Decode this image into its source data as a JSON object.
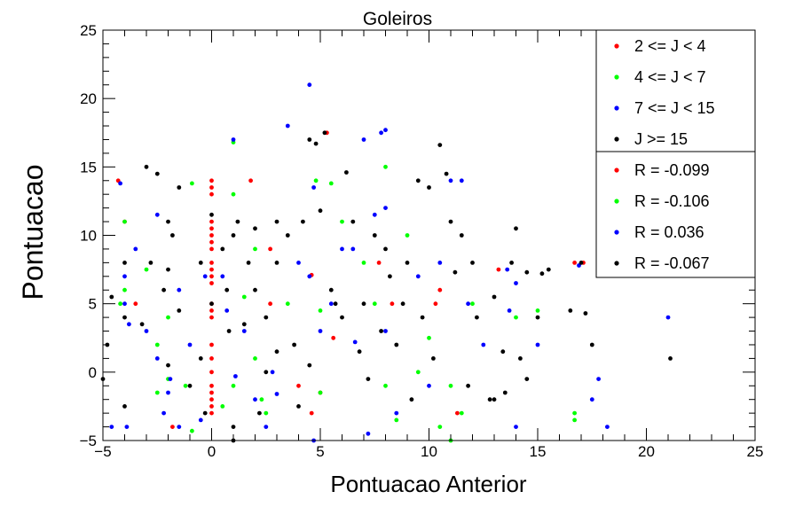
{
  "chart_data": {
    "type": "scatter",
    "title": "Goleiros",
    "xlabel": "Pontuacao Anterior",
    "ylabel": "Pontuacao",
    "xlim": [
      -5,
      25
    ],
    "ylim": [
      -5,
      25
    ],
    "xticks": [
      "−5",
      "0",
      "5",
      "10",
      "15",
      "20",
      "25"
    ],
    "yticks": [
      "−5",
      "0",
      "5",
      "10",
      "15",
      "20",
      "25"
    ],
    "grid": false,
    "legend_placement": "top-right",
    "legend": [
      {
        "label": "2 <= J < 4",
        "color": "#ff0000"
      },
      {
        "label": "4 <= J < 7",
        "color": "#00ff00"
      },
      {
        "label": "7 <= J < 15",
        "color": "#0000ff"
      },
      {
        "label": "J >= 15",
        "color": "#000000"
      }
    ],
    "correlations": [
      {
        "label": "R = -0.099",
        "color": "#ff0000"
      },
      {
        "label": "R = -0.106",
        "color": "#00ff00"
      },
      {
        "label": "R = 0.036",
        "color": "#0000ff"
      },
      {
        "label": "R = -0.067",
        "color": "#000000"
      }
    ],
    "series": [
      {
        "color": "#ff0000",
        "points": [
          [
            0,
            14
          ],
          [
            0,
            13.5
          ],
          [
            0,
            13
          ],
          [
            0,
            11
          ],
          [
            0,
            10.5
          ],
          [
            0,
            10
          ],
          [
            0,
            9.5
          ],
          [
            0,
            9
          ],
          [
            0,
            8
          ],
          [
            0,
            7.5
          ],
          [
            0,
            7
          ],
          [
            0,
            6.5
          ],
          [
            0,
            5
          ],
          [
            0,
            4.5
          ],
          [
            0,
            4
          ],
          [
            0,
            2
          ],
          [
            0,
            1
          ],
          [
            0,
            0
          ],
          [
            0,
            -1
          ],
          [
            0,
            -1.5
          ],
          [
            0,
            -2
          ],
          [
            0,
            -2.5
          ],
          [
            0,
            -3
          ],
          [
            -4.3,
            14
          ],
          [
            -4,
            11
          ],
          [
            1.8,
            14
          ],
          [
            2.7,
            9
          ],
          [
            -1.8,
            -4
          ],
          [
            -3.5,
            5
          ],
          [
            5.3,
            17.5
          ],
          [
            4.6,
            7.1
          ],
          [
            4,
            -1
          ],
          [
            4.6,
            -3
          ],
          [
            5,
            -1.5
          ],
          [
            5.6,
            2.5
          ],
          [
            7.7,
            8
          ],
          [
            8.3,
            5
          ],
          [
            10.3,
            5
          ],
          [
            10.5,
            6
          ],
          [
            11.3,
            -3
          ],
          [
            13.2,
            7.5
          ],
          [
            16.7,
            8
          ],
          [
            17.1,
            8
          ],
          [
            2.7,
            5
          ]
        ]
      },
      {
        "color": "#00ff00",
        "points": [
          [
            1,
            16.8
          ],
          [
            1,
            13
          ],
          [
            -0.9,
            13.8
          ],
          [
            -4,
            11
          ],
          [
            -4.2,
            5
          ],
          [
            -4,
            6
          ],
          [
            -3,
            7.5
          ],
          [
            -2.5,
            2
          ],
          [
            -2,
            4
          ],
          [
            -1.2,
            -1
          ],
          [
            -0.9,
            -4.3
          ],
          [
            -2,
            -0.5
          ],
          [
            -2.5,
            -1.5
          ],
          [
            0.5,
            -2.5
          ],
          [
            1,
            -1
          ],
          [
            1.5,
            5.5
          ],
          [
            2,
            9
          ],
          [
            2.3,
            -2
          ],
          [
            2.5,
            -3
          ],
          [
            3.5,
            5
          ],
          [
            4.8,
            14
          ],
          [
            5,
            -1.5
          ],
          [
            5.5,
            13.8
          ],
          [
            6,
            11
          ],
          [
            7,
            8
          ],
          [
            7.5,
            5
          ],
          [
            8,
            15
          ],
          [
            8,
            -1
          ],
          [
            8.5,
            -3.5
          ],
          [
            9,
            10
          ],
          [
            9.5,
            0
          ],
          [
            10,
            2.5
          ],
          [
            10.5,
            -4
          ],
          [
            11,
            -5
          ],
          [
            11,
            -1
          ],
          [
            11.5,
            -3
          ],
          [
            12,
            5
          ],
          [
            14,
            4
          ],
          [
            15,
            4.5
          ],
          [
            16.7,
            -3
          ],
          [
            16.7,
            -3.5
          ],
          [
            5,
            4.5
          ],
          [
            2,
            1
          ]
        ]
      },
      {
        "color": "#0000ff",
        "points": [
          [
            1,
            17
          ],
          [
            3.5,
            18
          ],
          [
            4.5,
            21
          ],
          [
            4.7,
            13.5
          ],
          [
            -4.2,
            13.8
          ],
          [
            -2.5,
            11.5
          ],
          [
            -3.5,
            9
          ],
          [
            -4,
            7
          ],
          [
            -4,
            5
          ],
          [
            -3.8,
            3.5
          ],
          [
            -3,
            3
          ],
          [
            -2.5,
            1
          ],
          [
            -1.9,
            -0.5
          ],
          [
            -2,
            -1.5
          ],
          [
            -2.2,
            -3
          ],
          [
            -4.6,
            -4
          ],
          [
            -3.9,
            -4
          ],
          [
            -1,
            2
          ],
          [
            -1.5,
            6
          ],
          [
            0.5,
            7
          ],
          [
            1.5,
            3
          ],
          [
            1.1,
            -0.3
          ],
          [
            2,
            -2
          ],
          [
            2.5,
            -4
          ],
          [
            3,
            -1.6
          ],
          [
            4,
            8
          ],
          [
            4.5,
            7
          ],
          [
            4.7,
            -5
          ],
          [
            5,
            3
          ],
          [
            5.5,
            5
          ],
          [
            6,
            9
          ],
          [
            7,
            17
          ],
          [
            7.5,
            11.5
          ],
          [
            7.8,
            17.5
          ],
          [
            8,
            17.7
          ],
          [
            8,
            12
          ],
          [
            7.2,
            -4.5
          ],
          [
            8,
            3
          ],
          [
            8.5,
            -3
          ],
          [
            9.5,
            7
          ],
          [
            10,
            -1
          ],
          [
            10.5,
            8
          ],
          [
            11,
            14
          ],
          [
            11.5,
            14
          ],
          [
            11.8,
            5
          ],
          [
            12.5,
            2
          ],
          [
            13.6,
            7.5
          ],
          [
            13.7,
            4.5
          ],
          [
            14,
            -4
          ],
          [
            14,
            6.5
          ],
          [
            15,
            2
          ],
          [
            16.9,
            7.8
          ],
          [
            17.5,
            -2
          ],
          [
            17.8,
            -0.5
          ],
          [
            18.2,
            -4
          ],
          [
            21,
            4
          ],
          [
            -1.5,
            -4
          ],
          [
            0.7,
            4.5
          ],
          [
            -0.3,
            7
          ],
          [
            -0.5,
            -3.5
          ],
          [
            6.6,
            2.2
          ],
          [
            6.5,
            9
          ],
          [
            2.8,
            0
          ]
        ]
      },
      {
        "color": "#000000",
        "points": [
          [
            -5,
            -0.5
          ],
          [
            -4.8,
            2
          ],
          [
            -4.6,
            5.5
          ],
          [
            -4,
            8
          ],
          [
            -4,
            4
          ],
          [
            -4,
            -2.5
          ],
          [
            -3,
            15
          ],
          [
            -2.5,
            14.5
          ],
          [
            -3.2,
            3.5
          ],
          [
            -2.8,
            8
          ],
          [
            -2.2,
            6
          ],
          [
            -2,
            11
          ],
          [
            -2,
            7.5
          ],
          [
            -2,
            0.5
          ],
          [
            -1.8,
            10
          ],
          [
            -1.5,
            13.5
          ],
          [
            -1.5,
            4.5
          ],
          [
            -1,
            -1
          ],
          [
            -0.5,
            8
          ],
          [
            -0.5,
            1
          ],
          [
            -0.3,
            -3
          ],
          [
            0,
            11.5
          ],
          [
            0,
            5
          ],
          [
            0.5,
            9
          ],
          [
            0.7,
            6
          ],
          [
            0.8,
            3
          ],
          [
            1,
            10
          ],
          [
            1,
            -4
          ],
          [
            1,
            -5
          ],
          [
            1.2,
            11
          ],
          [
            1.5,
            3.5
          ],
          [
            1.7,
            8
          ],
          [
            2,
            6
          ],
          [
            2,
            10.5
          ],
          [
            2.2,
            -3
          ],
          [
            2.5,
            0
          ],
          [
            2.5,
            4
          ],
          [
            3,
            11
          ],
          [
            3,
            8
          ],
          [
            3,
            1.5
          ],
          [
            3.5,
            10
          ],
          [
            3.8,
            2
          ],
          [
            4,
            -2.5
          ],
          [
            4.2,
            11
          ],
          [
            4.5,
            17
          ],
          [
            4.5,
            0.5
          ],
          [
            4.8,
            16.7
          ],
          [
            5,
            11.8
          ],
          [
            5.2,
            17.5
          ],
          [
            5.5,
            6
          ],
          [
            5.7,
            5
          ],
          [
            6,
            4
          ],
          [
            6.2,
            14.6
          ],
          [
            6.5,
            11
          ],
          [
            6.8,
            1.5
          ],
          [
            7,
            5
          ],
          [
            7.2,
            -0.5
          ],
          [
            7.5,
            10
          ],
          [
            7.8,
            3
          ],
          [
            8,
            9
          ],
          [
            8.2,
            7
          ],
          [
            8.5,
            2
          ],
          [
            8.8,
            5
          ],
          [
            9,
            8
          ],
          [
            9.2,
            -2
          ],
          [
            9.5,
            14
          ],
          [
            9.7,
            4
          ],
          [
            10,
            13.5
          ],
          [
            10.2,
            1
          ],
          [
            10.5,
            16.6
          ],
          [
            10.8,
            14.5
          ],
          [
            11,
            11
          ],
          [
            11.2,
            7.3
          ],
          [
            11.5,
            10
          ],
          [
            11.8,
            -1
          ],
          [
            12,
            8
          ],
          [
            12.2,
            4
          ],
          [
            12.8,
            -2
          ],
          [
            13,
            5.5
          ],
          [
            13.5,
            -1.5
          ],
          [
            13.8,
            8
          ],
          [
            14,
            10.5
          ],
          [
            14.2,
            1
          ],
          [
            14.5,
            7.3
          ],
          [
            15,
            4
          ],
          [
            15.5,
            7.5
          ],
          [
            16.5,
            4.5
          ],
          [
            17,
            8
          ],
          [
            17.2,
            4.3
          ],
          [
            17.5,
            2
          ],
          [
            21.1,
            1
          ],
          [
            13,
            -2
          ],
          [
            13.4,
            1.5
          ],
          [
            14.5,
            -0.5
          ],
          [
            15.2,
            7.2
          ]
        ]
      }
    ]
  }
}
